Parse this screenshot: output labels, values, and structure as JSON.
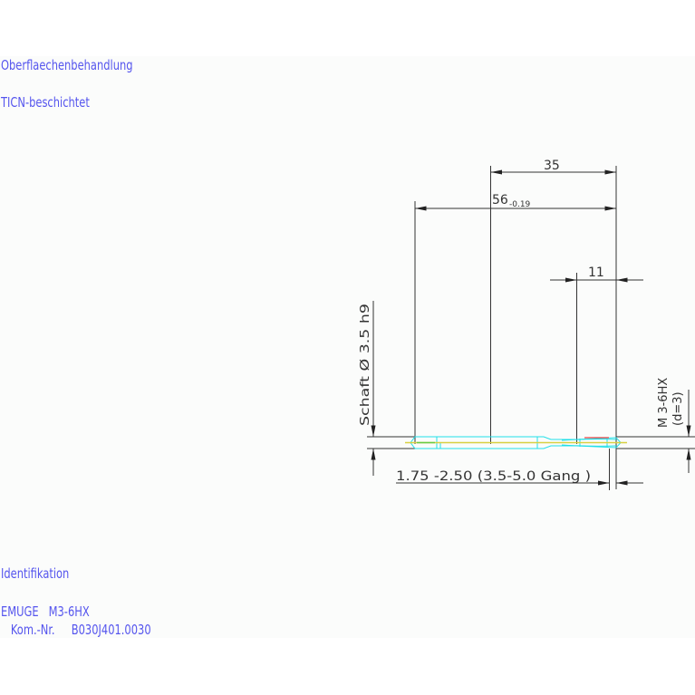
{
  "notes": {
    "surface_heading": "Oberflaechenbehandlung",
    "surface_value": "TICN-beschichtet",
    "id_heading": "Identifikation",
    "id_line1": "EMUGE   M3-6HX",
    "id_line2": "   Kom.-Nr.     B030J401.0030"
  },
  "dimensions": {
    "thread_length": "35",
    "total_length": "56",
    "total_length_tolerance": "-0.19",
    "chamfer_length": "11",
    "shank": "Schaft  Ø 3.5  h9",
    "thread_size": "M 3-6HX",
    "thread_diameter": "(d=3)",
    "chamfer_spec": "1.75 -2.50 (3.5-5.0 Gang  )"
  },
  "colors": {
    "text": "#5555ee",
    "dimension": "#333333",
    "outline": "#22e0e8",
    "centerline": "#d8d040",
    "accent_red": "#ee4444",
    "accent_green": "#66cc44"
  }
}
